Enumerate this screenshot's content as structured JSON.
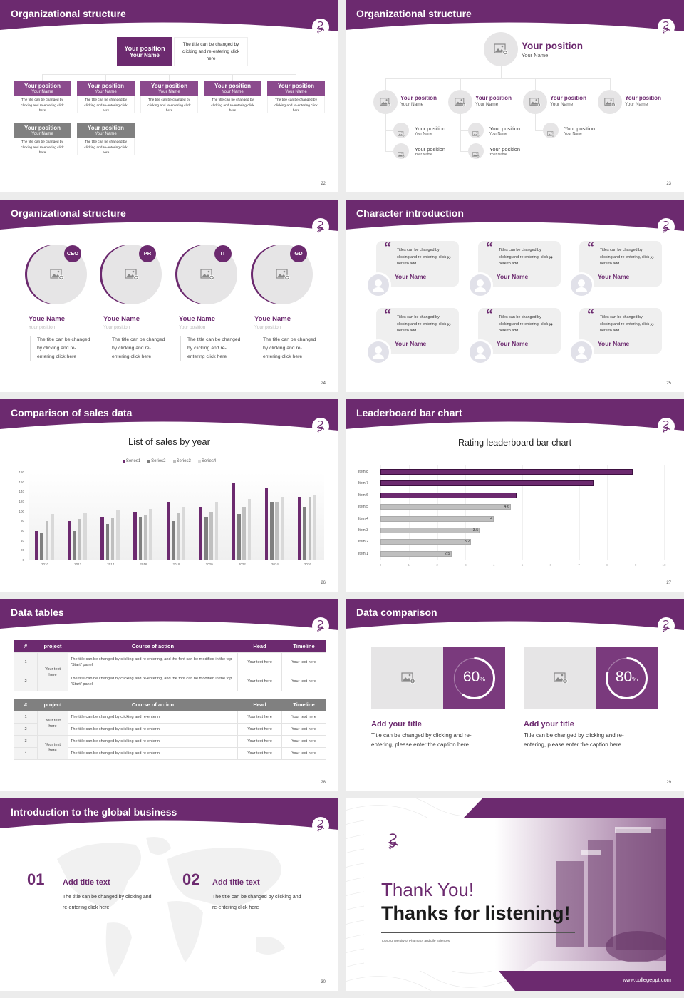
{
  "theme": {
    "purple": "#6c2a6f",
    "purple_light": "#8b4a8d",
    "gray_box": "#808080",
    "placeholder": "#e6e5e6"
  },
  "s22": {
    "title": "Organizational structure",
    "page": "22",
    "top": {
      "position": "Your position",
      "name": "Your Name",
      "desc": "The title can be changed by clicking and re-entering click here"
    },
    "row1": [
      {
        "position": "Your position",
        "name": "Your Name",
        "desc": "The title can be changed by clicking and re-entering click here"
      },
      {
        "position": "Your position",
        "name": "Your Name",
        "desc": "The title can be changed by clicking and re-entering click here"
      },
      {
        "position": "Your position",
        "name": "Your Name",
        "desc": "The title can be changed by clicking and re-entering click here"
      },
      {
        "position": "Your position",
        "name": "Your Name",
        "desc": "The title can be changed by clicking and re-entering click here"
      },
      {
        "position": "Your position",
        "name": "Your Name",
        "desc": "The title can be changed by clicking and re-entering click here"
      }
    ],
    "row2": [
      {
        "position": "Your position",
        "name": "Your Name",
        "desc": "The title can be changed by clicking and re-entering click here"
      },
      {
        "position": "Your position",
        "name": "Your Name",
        "desc": "The title can be changed by clicking and re-entering click here"
      }
    ]
  },
  "s23": {
    "title": "Organizational structure",
    "page": "23",
    "top": {
      "position": "Your position",
      "name": "Your Name"
    },
    "level2": [
      {
        "position": "Your position",
        "name": "Your Name"
      },
      {
        "position": "Your position",
        "name": "Your Name"
      },
      {
        "position": "Your position",
        "name": "Your Name"
      },
      {
        "position": "Your position",
        "name": "Your Name"
      }
    ],
    "subs": [
      [
        {
          "position": "Your position",
          "name": "Your Name"
        },
        {
          "position": "Your position",
          "name": "Your Name"
        }
      ],
      [
        {
          "position": "Your position",
          "name": "Your Name"
        },
        {
          "position": "Your position",
          "name": "Your Name"
        }
      ],
      [
        {
          "position": "Your position",
          "name": "Your Name"
        }
      ]
    ]
  },
  "s24": {
    "title": "Organizational structure",
    "page": "24",
    "members": [
      {
        "badge": "CEO",
        "name": "Youe Name",
        "position": "Your position",
        "desc": "The title can be changed by clicking and re-entering click here"
      },
      {
        "badge": "PR",
        "name": "Youe Name",
        "position": "Your position",
        "desc": "The title can be changed by clicking and re-entering click here"
      },
      {
        "badge": "IT",
        "name": "Youe Name",
        "position": "Your position",
        "desc": "The title can be changed by clicking and re-entering click here"
      },
      {
        "badge": "GD",
        "name": "Youe Name",
        "position": "Your position",
        "desc": "The title can be changed by clicking and re-entering click here"
      }
    ]
  },
  "s25": {
    "title": "Character introduction",
    "page": "25",
    "cards": [
      {
        "quote": "Titles can be changed by clicking and re-entering, click here to add",
        "name": "Your Name"
      },
      {
        "quote": "Titles can be changed by clicking and re-entering, click here to add",
        "name": "Your Name"
      },
      {
        "quote": "Titles can be changed by clicking and re-entering, click here to add",
        "name": "Your Name"
      },
      {
        "quote": "Titles can be changed by clicking and re-entering, click here to add",
        "name": "Your Name"
      },
      {
        "quote": "Titles can be changed by clicking and re-entering, click here to add",
        "name": "Your Name"
      },
      {
        "quote": "Titles can be changed by clicking and re-entering, click here to add",
        "name": "Your Name"
      }
    ]
  },
  "s26": {
    "title": "Comparison of sales data",
    "page": "26"
  },
  "s27": {
    "title": "Leaderboard bar chart",
    "page": "27"
  },
  "s28": {
    "title": "Data tables",
    "page": "28",
    "table1": {
      "headers": [
        "#",
        "project",
        "Course of action",
        "Head",
        "Timeline"
      ],
      "project": "Your text here",
      "rows": [
        {
          "no": "1",
          "course": "The title can be changed by clicking and re-entering, and the font can be modified in the top \"Start\" panel",
          "head": "Your text here",
          "timeline": "Your text here"
        },
        {
          "no": "2",
          "course": "The title can be changed by clicking and re-entering, and the font can be modified in the top \"Start\" panel",
          "head": "Your text here",
          "timeline": "Your text here"
        }
      ]
    },
    "table2": {
      "headers": [
        "#",
        "project",
        "Course of action",
        "Head",
        "Timeline"
      ],
      "projects": [
        "Your text here",
        "Your text here"
      ],
      "rows": [
        {
          "no": "1",
          "course": "The title can be changed by clicking and re-enterin",
          "head": "Your text here",
          "timeline": "Your text here"
        },
        {
          "no": "2",
          "course": "The title can be changed by clicking and re-enterin",
          "head": "Your text here",
          "timeline": "Your text here"
        },
        {
          "no": "3",
          "course": "The title can be changed by clicking and re-enterin",
          "head": "Your text here",
          "timeline": "Your text here"
        },
        {
          "no": "4",
          "course": "The title can be changed by clicking and re-enterin",
          "head": "Your text here",
          "timeline": "Your text here"
        }
      ]
    }
  },
  "s29": {
    "title": "Data comparison",
    "page": "29",
    "items": [
      {
        "percent": 60,
        "value": "60",
        "unit": "%",
        "title": "Add your title",
        "desc": "Title can be changed by clicking and re-entering, please enter the caption here"
      },
      {
        "percent": 80,
        "value": "80",
        "unit": "%",
        "title": "Add your title",
        "desc": "Title can be changed by clicking and re-entering, please enter the caption here"
      }
    ]
  },
  "s30": {
    "title": "Introduction to the global business",
    "page": "30",
    "items": [
      {
        "num": "01",
        "title": "Add title text",
        "desc": "The title can be changed by clicking and re-entering click here"
      },
      {
        "num": "02",
        "title": "Add title text",
        "desc": "The title can be changed by clicking and re-entering click here"
      }
    ]
  },
  "s31": {
    "thank": "Thank You!",
    "thanks": "Thanks for listening!",
    "university": "Tokyo University of Pharmacy and Life Sciences",
    "url": "www.collegeppt.com"
  },
  "chart_data": [
    {
      "type": "bar",
      "title": "List of sales by year",
      "categories": [
        "2010",
        "2012",
        "2014",
        "2016",
        "2018",
        "2020",
        "2022",
        "2024",
        "2026"
      ],
      "series": [
        {
          "name": "Series1",
          "color": "#6c2a6f",
          "values": [
            60,
            80,
            90,
            100,
            120,
            110,
            160,
            150,
            130
          ]
        },
        {
          "name": "Series2",
          "color": "#7f7f7f",
          "values": [
            55,
            60,
            75,
            90,
            80,
            90,
            95,
            120,
            110
          ]
        },
        {
          "name": "Series3",
          "color": "#bfbfbf",
          "values": [
            80,
            85,
            88,
            92,
            98,
            100,
            110,
            120,
            130
          ]
        },
        {
          "name": "Series4",
          "color": "#d9d9d9",
          "values": [
            95,
            98,
            102,
            105,
            110,
            120,
            126,
            130,
            135
          ]
        }
      ],
      "ylim": [
        0,
        180
      ],
      "yticks": [
        "0",
        "20",
        "40",
        "60",
        "80",
        "100",
        "120",
        "140",
        "160",
        "180"
      ],
      "legend": "top",
      "grid": false
    },
    {
      "type": "bar",
      "orientation": "horizontal",
      "title": "Rating leaderboard bar chart",
      "categories": [
        "Item 1",
        "Item 2",
        "Item 3",
        "Item 4",
        "Item 5",
        "Item 6",
        "Item 7",
        "Item 8"
      ],
      "values": [
        2.5,
        3.2,
        3.5,
        4,
        4.6,
        4.8,
        7.5,
        8.9
      ],
      "data_labels": [
        "2.5",
        "3.2",
        "3.5",
        "4",
        "4.6",
        "",
        "",
        ""
      ],
      "colors": {
        "top3": "#6c2a6f",
        "other": "#bfbfbf"
      },
      "xlim": [
        0,
        10
      ],
      "xticks": [
        "0",
        "1",
        "2",
        "3",
        "4",
        "5",
        "6",
        "7",
        "8",
        "9",
        "10"
      ],
      "grid": true
    }
  ]
}
